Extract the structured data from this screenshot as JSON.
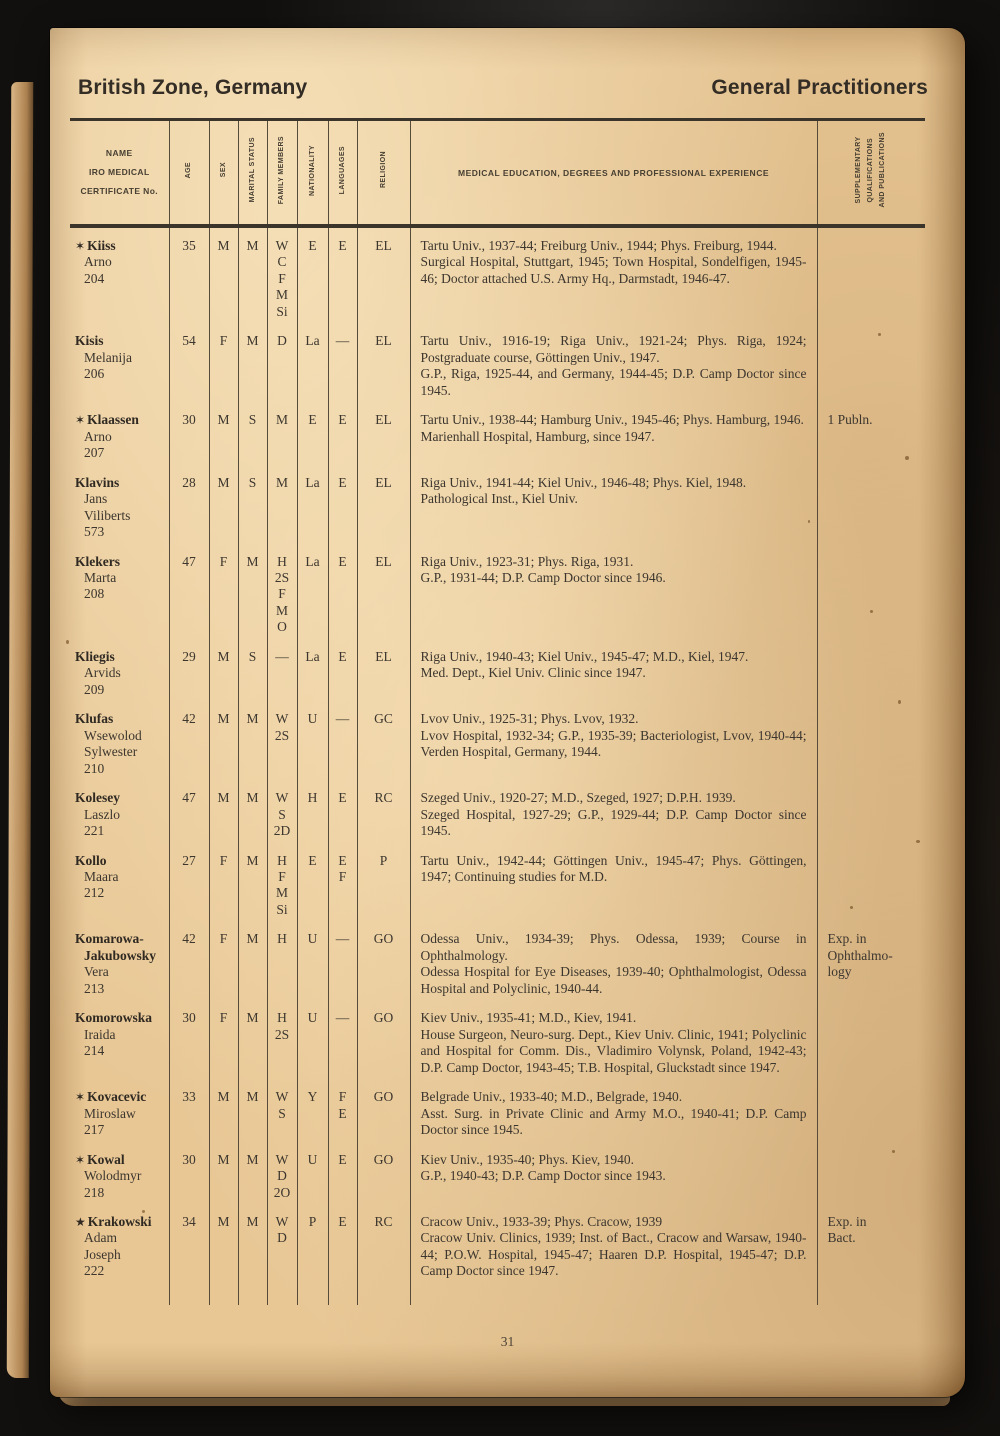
{
  "page": {
    "region_title": "British Zone, Germany",
    "section_title": "General Practitioners",
    "page_number": "31"
  },
  "table": {
    "headers": {
      "name": [
        "NAME",
        "IRO MEDICAL",
        "CERTIFICATE No."
      ],
      "age": "AGE",
      "sex": "SEX",
      "marital_status": "MARITAL STATUS",
      "family_members": "FAMILY MEMBERS",
      "nationality": "NATIONALITY",
      "languages": "LANGUAGES",
      "religion": "RELIGION",
      "education": "MEDICAL EDUCATION, DEGREES AND PROFESSIONAL EXPERIENCE",
      "supplementary": [
        "SUPPLEMENTARY",
        "QUALIFICATIONS",
        "AND PUBLICATIONS"
      ]
    },
    "rows": [
      {
        "star": "✶",
        "surname": "Kiiss",
        "given_names": [
          "Arno"
        ],
        "cert_no": "204",
        "age": "35",
        "sex": "M",
        "marital_status": "M",
        "family_members": [
          "W",
          "C",
          "F",
          "M",
          "Si"
        ],
        "nationality": "E",
        "languages": [
          "E"
        ],
        "religion": "EL",
        "education": [
          "Tartu Univ., 1937-44; Freiburg Univ., 1944; Phys. Freiburg, 1944.",
          "Surgical Hospital, Stuttgart, 1945; Town Hospital, Sondelfigen, 1945-46; Doctor attached U.S. Army Hq., Darmstadt, 1946-47."
        ]
      },
      {
        "surname": "Kisis",
        "given_names": [
          "Melanija"
        ],
        "cert_no": "206",
        "age": "54",
        "sex": "F",
        "marital_status": "M",
        "family_members": [
          "D"
        ],
        "nationality": "La",
        "languages": [
          "—"
        ],
        "religion": "EL",
        "education": [
          "Tartu Univ., 1916-19; Riga Univ., 1921-24; Phys. Riga, 1924; Postgraduate course, Göttingen Univ., 1947.",
          "G.P., Riga, 1925-44, and Germany, 1944-45; D.P. Camp Doctor since 1945."
        ]
      },
      {
        "star": "✶",
        "surname": "Klaassen",
        "given_names": [
          "Arno"
        ],
        "cert_no": "207",
        "age": "30",
        "sex": "M",
        "marital_status": "S",
        "family_members": [
          "M"
        ],
        "nationality": "E",
        "languages": [
          "E"
        ],
        "religion": "EL",
        "education": [
          "Tartu Univ., 1938-44; Hamburg Univ., 1945-46; Phys. Hamburg, 1946.",
          "Marienhall Hospital, Hamburg, since 1947."
        ],
        "supplementary": [
          "1 Publn."
        ]
      },
      {
        "surname": "Klavins",
        "given_names": [
          "Jans",
          "Viliberts"
        ],
        "cert_no": "573",
        "age": "28",
        "sex": "M",
        "marital_status": "S",
        "family_members": [
          "M"
        ],
        "nationality": "La",
        "languages": [
          "E"
        ],
        "religion": "EL",
        "education": [
          "Riga Univ., 1941-44; Kiel Univ., 1946-48; Phys. Kiel, 1948.",
          "Pathological Inst., Kiel Univ."
        ]
      },
      {
        "surname": "Klekers",
        "given_names": [
          "Marta"
        ],
        "cert_no": "208",
        "age": "47",
        "sex": "F",
        "marital_status": "M",
        "family_members": [
          "H",
          "2S",
          "F",
          "M",
          "O"
        ],
        "nationality": "La",
        "languages": [
          "E"
        ],
        "religion": "EL",
        "education": [
          "Riga Univ., 1923-31; Phys. Riga, 1931.",
          "G.P., 1931-44; D.P. Camp Doctor since 1946."
        ]
      },
      {
        "surname": "Kliegis",
        "given_names": [
          "Arvids"
        ],
        "cert_no": "209",
        "age": "29",
        "sex": "M",
        "marital_status": "S",
        "family_members": [
          "—"
        ],
        "nationality": "La",
        "languages": [
          "E"
        ],
        "religion": "EL",
        "education": [
          "Riga Univ., 1940-43; Kiel Univ., 1945-47; M.D., Kiel, 1947.",
          "Med. Dept., Kiel Univ. Clinic since 1947."
        ]
      },
      {
        "surname": "Klufas",
        "given_names": [
          "Wsewolod",
          "Sylwester"
        ],
        "cert_no": "210",
        "age": "42",
        "sex": "M",
        "marital_status": "M",
        "family_members": [
          "W",
          "2S"
        ],
        "nationality": "U",
        "languages": [
          "—"
        ],
        "religion": "GC",
        "education": [
          "Lvov Univ., 1925-31; Phys. Lvov, 1932.",
          "Lvov Hospital, 1932-34; G.P., 1935-39; Bacteriologist, Lvov, 1940-44; Verden Hospital, Germany, 1944."
        ]
      },
      {
        "surname": "Kolesey",
        "given_names": [
          "Laszlo"
        ],
        "cert_no": "221",
        "age": "47",
        "sex": "M",
        "marital_status": "M",
        "family_members": [
          "W",
          "S",
          "2D"
        ],
        "nationality": "H",
        "languages": [
          "E"
        ],
        "religion": "RC",
        "education": [
          "Szeged Univ., 1920-27; M.D., Szeged, 1927; D.P.H. 1939.",
          "Szeged Hospital, 1927-29; G.P., 1929-44; D.P. Camp Doctor since 1945."
        ]
      },
      {
        "surname": "Kollo",
        "given_names": [
          "Maara"
        ],
        "cert_no": "212",
        "age": "27",
        "sex": "F",
        "marital_status": "M",
        "family_members": [
          "H",
          "F",
          "M",
          "Si"
        ],
        "nationality": "E",
        "languages": [
          "E",
          "F"
        ],
        "religion": "P",
        "education": [
          "Tartu Univ., 1942-44; Göttingen Univ., 1945-47; Phys. Göttingen, 1947; Continuing studies for M.D."
        ]
      },
      {
        "surname": "Komarowa-",
        "surname2": "Jakubowsky",
        "given_names": [
          "Vera"
        ],
        "cert_no": "213",
        "age": "42",
        "sex": "F",
        "marital_status": "M",
        "family_members": [
          "H"
        ],
        "nationality": "U",
        "languages": [
          "—"
        ],
        "religion": "GO",
        "education": [
          "Odessa Univ., 1934-39; Phys. Odessa, 1939; Course in Ophthalmology.",
          "Odessa Hospital for Eye Diseases, 1939-40; Ophthalmologist, Odessa Hospital and Polyclinic, 1940-44."
        ],
        "supplementary": [
          "Exp. in",
          "Ophthalmo-",
          "logy"
        ]
      },
      {
        "surname": "Komorowska",
        "given_names": [
          "Iraida"
        ],
        "cert_no": "214",
        "age": "30",
        "sex": "F",
        "marital_status": "M",
        "family_members": [
          "H",
          "2S"
        ],
        "nationality": "U",
        "languages": [
          "—"
        ],
        "religion": "GO",
        "education": [
          "Kiev Univ., 1935-41; M.D., Kiev, 1941.",
          "House Surgeon, Neuro-surg. Dept., Kiev Univ. Clinic, 1941; Polyclinic and Hospital for Comm. Dis., Vladimiro Volynsk, Poland, 1942-43; D.P. Camp Doctor, 1943-45; T.B. Hospital, Gluckstadt since 1947."
        ]
      },
      {
        "star": "✶",
        "surname": "Kovacevic",
        "given_names": [
          "Miroslaw"
        ],
        "cert_no": "217",
        "age": "33",
        "sex": "M",
        "marital_status": "M",
        "family_members": [
          "W",
          "S"
        ],
        "nationality": "Y",
        "languages": [
          "F",
          "E"
        ],
        "religion": "GO",
        "education": [
          "Belgrade Univ., 1933-40; M.D., Belgrade, 1940.",
          "Asst. Surg. in Private Clinic and Army M.O., 1940-41; D.P. Camp Doctor since 1945."
        ]
      },
      {
        "star": "✶",
        "surname": "Kowal",
        "given_names": [
          "Wolodmyr"
        ],
        "cert_no": "218",
        "age": "30",
        "sex": "M",
        "marital_status": "M",
        "family_members": [
          "W",
          "D",
          "2O"
        ],
        "nationality": "U",
        "languages": [
          "E"
        ],
        "religion": "GO",
        "education": [
          "Kiev Univ., 1935-40; Phys. Kiev, 1940.",
          "G.P., 1940-43; D.P. Camp Doctor since 1943."
        ]
      },
      {
        "star": "★",
        "surname": "Krakowski",
        "given_names": [
          "Adam",
          "Joseph"
        ],
        "cert_no": "222",
        "age": "34",
        "sex": "M",
        "marital_status": "M",
        "family_members": [
          "W",
          "D"
        ],
        "nationality": "P",
        "languages": [
          "E"
        ],
        "religion": "RC",
        "education": [
          "Cracow Univ., 1933-39; Phys. Cracow, 1939",
          "Cracow Univ. Clinics, 1939; Inst. of Bact., Cracow and Warsaw, 1940-44; P.O.W. Hospital, 1945-47; Haaren D.P. Hospital, 1945-47; D.P. Camp Doctor since 1947."
        ],
        "supplementary": [
          "Exp. in",
          "Bact."
        ]
      }
    ]
  }
}
